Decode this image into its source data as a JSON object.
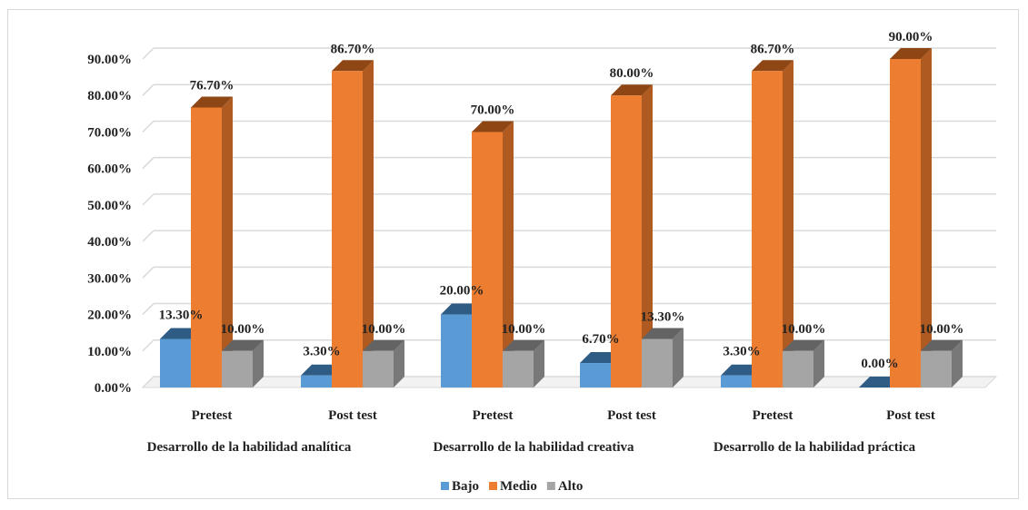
{
  "chart_data": {
    "type": "bar",
    "title": "",
    "xlabel": "",
    "ylabel": "",
    "ylim": [
      0,
      90
    ],
    "y_tick_values": [
      0,
      10,
      20,
      30,
      40,
      50,
      60,
      70,
      80,
      90
    ],
    "y_tick_labels": [
      "0.00%",
      "10.00%",
      "20.00%",
      "30.00%",
      "40.00%",
      "50.00%",
      "60.00%",
      "70.00%",
      "80.00%",
      "90.00%"
    ],
    "groups": [
      "Desarrollo de la habilidad analítica",
      "Desarrollo de la habilidad creativa",
      "Desarrollo de la habilidad práctica"
    ],
    "categories": [
      "Pretest",
      "Post test",
      "Pretest",
      "Post test",
      "Pretest",
      "Post test"
    ],
    "series": [
      {
        "name": "Bajo",
        "color": "#5b9bd5",
        "values": [
          13.3,
          3.3,
          20.0,
          6.7,
          3.3,
          0.0
        ],
        "labels": [
          "13.30%",
          "3.30%",
          "20.00%",
          "6.70%",
          "3.30%",
          "0.00%"
        ]
      },
      {
        "name": "Medio",
        "color": "#ed7d31",
        "values": [
          76.7,
          86.7,
          70.0,
          80.0,
          86.7,
          90.0
        ],
        "labels": [
          "76.70%",
          "86.70%",
          "70.00%",
          "80.00%",
          "86.70%",
          "90.00%"
        ]
      },
      {
        "name": "Alto",
        "color": "#a5a5a5",
        "values": [
          10.0,
          10.0,
          10.0,
          13.3,
          10.0,
          10.0
        ],
        "labels": [
          "10.00%",
          "10.00%",
          "10.00%",
          "13.30%",
          "10.00%",
          "10.00%"
        ]
      }
    ],
    "grid": true,
    "legend": "bottom"
  }
}
